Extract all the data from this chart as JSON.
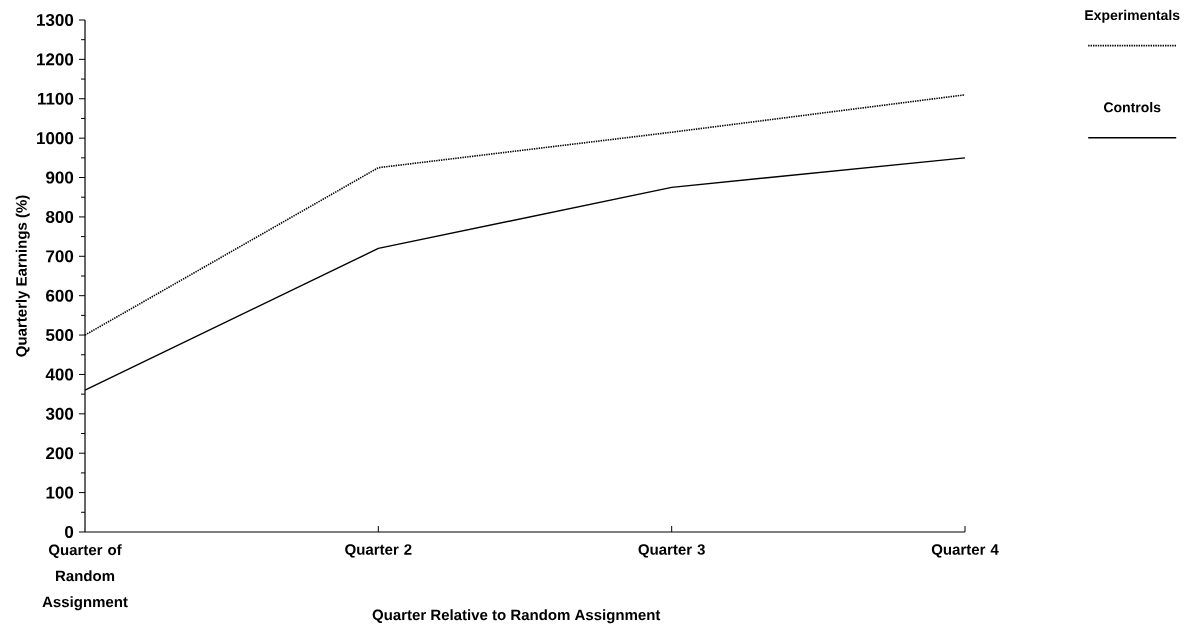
{
  "chart_data": {
    "type": "line",
    "xlabel": "Quarter Relative to Random Assignment",
    "ylabel": "Quarterly Earnings (%)",
    "categories": [
      "Quarter of Random Assignment",
      "Quarter 2",
      "Quarter 3",
      "Quarter 4"
    ],
    "series": [
      {
        "name": "Experimentals",
        "color": "#000000",
        "line_style": "dotted",
        "values": [
          500,
          925,
          1015,
          1110
        ]
      },
      {
        "name": "Controls",
        "color": "#000000",
        "line_style": "solid",
        "values": [
          360,
          720,
          875,
          950
        ]
      }
    ],
    "ylim": [
      0,
      1300
    ],
    "yticks": [
      0,
      100,
      200,
      300,
      400,
      500,
      600,
      700,
      800,
      900,
      1000,
      1100,
      1200,
      1300
    ],
    "grid": false,
    "legend": "top right",
    "marker": "none"
  }
}
